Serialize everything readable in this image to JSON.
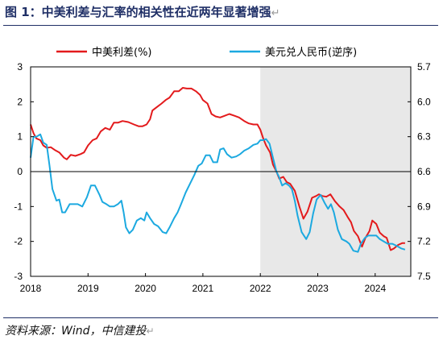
{
  "header": {
    "title": "图 1：中美利差与汇率的相关性在近两年显著增强",
    "title_mark": "↵"
  },
  "footer": {
    "source": "资料来源：Wind，中信建投",
    "source_mark": "↵"
  },
  "chart_data": {
    "type": "line",
    "title": "",
    "xlabel": "",
    "x_ticks": [
      "2018",
      "2019",
      "2020",
      "2021",
      "2022",
      "2023",
      "2024"
    ],
    "y_left": {
      "label": "",
      "range": [
        -3,
        3
      ],
      "ticks": [
        "-3",
        "-2",
        "-1",
        "0",
        "1",
        "2",
        "3"
      ]
    },
    "y_right": {
      "label": "",
      "range": [
        5.7,
        7.5
      ],
      "inverted": true,
      "ticks": [
        "5.7",
        "6.0",
        "6.3",
        "6.6",
        "6.9",
        "7.2",
        "7.5"
      ]
    },
    "grid": false,
    "legend_position": "top",
    "shaded_region": {
      "from": 2022.0,
      "to": 2024.55,
      "color": "#e8e8e8"
    },
    "series": [
      {
        "name": "中美利差(%)",
        "axis": "left",
        "color": "#e31a1c",
        "points": [
          [
            2018.0,
            1.35
          ],
          [
            2018.05,
            1.1
          ],
          [
            2018.1,
            0.95
          ],
          [
            2018.17,
            0.9
          ],
          [
            2018.22,
            0.75
          ],
          [
            2018.28,
            0.68
          ],
          [
            2018.35,
            0.7
          ],
          [
            2018.42,
            0.62
          ],
          [
            2018.5,
            0.55
          ],
          [
            2018.58,
            0.4
          ],
          [
            2018.63,
            0.35
          ],
          [
            2018.7,
            0.48
          ],
          [
            2018.78,
            0.45
          ],
          [
            2018.87,
            0.5
          ],
          [
            2018.93,
            0.55
          ],
          [
            2019.0,
            0.75
          ],
          [
            2019.08,
            0.9
          ],
          [
            2019.15,
            0.95
          ],
          [
            2019.22,
            1.15
          ],
          [
            2019.3,
            1.25
          ],
          [
            2019.38,
            1.2
          ],
          [
            2019.45,
            1.4
          ],
          [
            2019.52,
            1.4
          ],
          [
            2019.6,
            1.45
          ],
          [
            2019.7,
            1.42
          ],
          [
            2019.8,
            1.35
          ],
          [
            2019.88,
            1.3
          ],
          [
            2019.95,
            1.3
          ],
          [
            2020.02,
            1.35
          ],
          [
            2020.08,
            1.5
          ],
          [
            2020.12,
            1.75
          ],
          [
            2020.2,
            1.85
          ],
          [
            2020.28,
            1.95
          ],
          [
            2020.35,
            2.05
          ],
          [
            2020.42,
            2.12
          ],
          [
            2020.5,
            2.3
          ],
          [
            2020.58,
            2.3
          ],
          [
            2020.65,
            2.4
          ],
          [
            2020.72,
            2.38
          ],
          [
            2020.8,
            2.38
          ],
          [
            2020.88,
            2.3
          ],
          [
            2020.95,
            2.2
          ],
          [
            2021.0,
            2.05
          ],
          [
            2021.08,
            1.95
          ],
          [
            2021.15,
            1.65
          ],
          [
            2021.22,
            1.58
          ],
          [
            2021.3,
            1.55
          ],
          [
            2021.38,
            1.6
          ],
          [
            2021.46,
            1.65
          ],
          [
            2021.55,
            1.6
          ],
          [
            2021.63,
            1.55
          ],
          [
            2021.72,
            1.45
          ],
          [
            2021.8,
            1.38
          ],
          [
            2021.88,
            1.35
          ],
          [
            2021.95,
            1.35
          ],
          [
            2022.0,
            1.2
          ],
          [
            2022.05,
            0.95
          ],
          [
            2022.1,
            0.75
          ],
          [
            2022.17,
            0.55
          ],
          [
            2022.22,
            0.2
          ],
          [
            2022.28,
            0.0
          ],
          [
            2022.33,
            -0.2
          ],
          [
            2022.4,
            -0.15
          ],
          [
            2022.46,
            -0.3
          ],
          [
            2022.52,
            -0.35
          ],
          [
            2022.6,
            -0.55
          ],
          [
            2022.68,
            -1.0
          ],
          [
            2022.75,
            -1.35
          ],
          [
            2022.82,
            -1.15
          ],
          [
            2022.9,
            -0.75
          ],
          [
            2022.97,
            -0.7
          ],
          [
            2023.02,
            -0.65
          ],
          [
            2023.08,
            -0.7
          ],
          [
            2023.15,
            -0.72
          ],
          [
            2023.22,
            -0.65
          ],
          [
            2023.3,
            -0.85
          ],
          [
            2023.38,
            -1.0
          ],
          [
            2023.45,
            -1.1
          ],
          [
            2023.52,
            -1.3
          ],
          [
            2023.58,
            -1.45
          ],
          [
            2023.63,
            -1.7
          ],
          [
            2023.7,
            -1.85
          ],
          [
            2023.77,
            -2.15
          ],
          [
            2023.83,
            -1.9
          ],
          [
            2023.9,
            -1.7
          ],
          [
            2023.95,
            -1.4
          ],
          [
            2024.02,
            -1.5
          ],
          [
            2024.08,
            -1.75
          ],
          [
            2024.15,
            -1.85
          ],
          [
            2024.2,
            -1.9
          ],
          [
            2024.27,
            -2.25
          ],
          [
            2024.33,
            -2.2
          ],
          [
            2024.4,
            -2.1
          ],
          [
            2024.47,
            -2.05
          ],
          [
            2024.52,
            -2.05
          ]
        ]
      },
      {
        "name": "美元兑人民币(逆序)",
        "axis": "right",
        "color": "#1ca9e0",
        "points": [
          [
            2018.0,
            6.48
          ],
          [
            2018.05,
            6.3
          ],
          [
            2018.1,
            6.3
          ],
          [
            2018.17,
            6.28
          ],
          [
            2018.22,
            6.35
          ],
          [
            2018.28,
            6.37
          ],
          [
            2018.33,
            6.55
          ],
          [
            2018.38,
            6.75
          ],
          [
            2018.45,
            6.85
          ],
          [
            2018.5,
            6.84
          ],
          [
            2018.55,
            6.95
          ],
          [
            2018.6,
            6.95
          ],
          [
            2018.68,
            6.88
          ],
          [
            2018.75,
            6.88
          ],
          [
            2018.82,
            6.88
          ],
          [
            2018.9,
            6.9
          ],
          [
            2018.98,
            6.82
          ],
          [
            2019.05,
            6.72
          ],
          [
            2019.12,
            6.72
          ],
          [
            2019.2,
            6.8
          ],
          [
            2019.25,
            6.86
          ],
          [
            2019.32,
            6.88
          ],
          [
            2019.38,
            6.9
          ],
          [
            2019.45,
            6.9
          ],
          [
            2019.52,
            6.88
          ],
          [
            2019.58,
            6.85
          ],
          [
            2019.62,
            6.95
          ],
          [
            2019.66,
            7.08
          ],
          [
            2019.72,
            7.13
          ],
          [
            2019.78,
            7.1
          ],
          [
            2019.85,
            7.02
          ],
          [
            2019.92,
            7.0
          ],
          [
            2019.98,
            7.02
          ],
          [
            2020.02,
            6.95
          ],
          [
            2020.08,
            7.0
          ],
          [
            2020.15,
            7.05
          ],
          [
            2020.22,
            7.07
          ],
          [
            2020.3,
            7.12
          ],
          [
            2020.36,
            7.13
          ],
          [
            2020.42,
            7.08
          ],
          [
            2020.5,
            7.0
          ],
          [
            2020.56,
            6.95
          ],
          [
            2020.62,
            6.88
          ],
          [
            2020.7,
            6.78
          ],
          [
            2020.78,
            6.7
          ],
          [
            2020.85,
            6.63
          ],
          [
            2020.92,
            6.55
          ],
          [
            2020.98,
            6.53
          ],
          [
            2021.05,
            6.46
          ],
          [
            2021.12,
            6.46
          ],
          [
            2021.18,
            6.52
          ],
          [
            2021.25,
            6.52
          ],
          [
            2021.3,
            6.41
          ],
          [
            2021.36,
            6.4
          ],
          [
            2021.42,
            6.45
          ],
          [
            2021.5,
            6.48
          ],
          [
            2021.58,
            6.47
          ],
          [
            2021.65,
            6.45
          ],
          [
            2021.72,
            6.42
          ],
          [
            2021.8,
            6.4
          ],
          [
            2021.88,
            6.37
          ],
          [
            2021.95,
            6.36
          ],
          [
            2022.0,
            6.33
          ],
          [
            2022.05,
            6.33
          ],
          [
            2022.1,
            6.32
          ],
          [
            2022.16,
            6.36
          ],
          [
            2022.22,
            6.48
          ],
          [
            2022.28,
            6.6
          ],
          [
            2022.33,
            6.65
          ],
          [
            2022.38,
            6.72
          ],
          [
            2022.44,
            6.7
          ],
          [
            2022.5,
            6.72
          ],
          [
            2022.55,
            6.75
          ],
          [
            2022.6,
            6.85
          ],
          [
            2022.65,
            6.98
          ],
          [
            2022.72,
            7.12
          ],
          [
            2022.8,
            7.18
          ],
          [
            2022.86,
            7.12
          ],
          [
            2022.92,
            6.96
          ],
          [
            2022.98,
            6.84
          ],
          [
            2023.05,
            6.8
          ],
          [
            2023.12,
            6.87
          ],
          [
            2023.18,
            6.92
          ],
          [
            2023.23,
            6.88
          ],
          [
            2023.28,
            6.95
          ],
          [
            2023.35,
            7.1
          ],
          [
            2023.42,
            7.18
          ],
          [
            2023.5,
            7.2
          ],
          [
            2023.55,
            7.22
          ],
          [
            2023.62,
            7.28
          ],
          [
            2023.7,
            7.29
          ],
          [
            2023.75,
            7.22
          ],
          [
            2023.82,
            7.17
          ],
          [
            2023.88,
            7.15
          ],
          [
            2023.95,
            7.15
          ],
          [
            2024.02,
            7.15
          ],
          [
            2024.08,
            7.18
          ],
          [
            2024.15,
            7.2
          ],
          [
            2024.22,
            7.22
          ],
          [
            2024.3,
            7.22
          ],
          [
            2024.38,
            7.24
          ],
          [
            2024.45,
            7.26
          ],
          [
            2024.52,
            7.27
          ]
        ]
      }
    ]
  }
}
